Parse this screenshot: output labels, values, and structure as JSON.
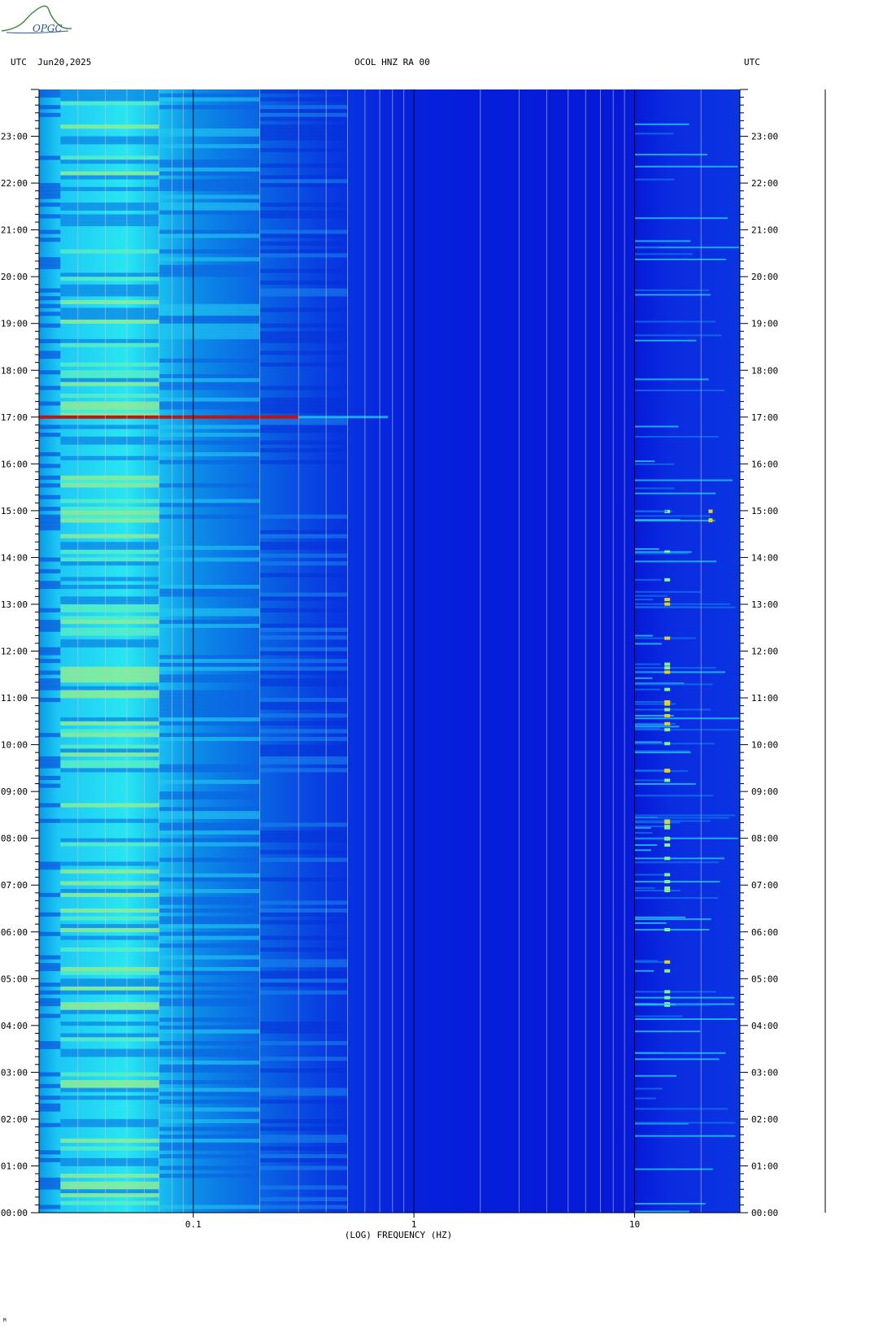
{
  "header": {
    "left": "UTC  Jun20,2025",
    "center": "OCOL HNZ RA 00",
    "right": "UTC",
    "logo_text": "OPGC",
    "credit": "M"
  },
  "colors": {
    "low": "#0018d8",
    "mid": "#0aa0f0",
    "cyan": "#20e8f8",
    "high": "#c8f040",
    "peak": "#c81010"
  },
  "chart_data": {
    "type": "heatmap",
    "title": "OCOL HNZ RA 00",
    "xlabel": "(LOG) FREQUENCY (HZ)",
    "ylabel": "UTC",
    "x_scale": "log",
    "xlim": [
      0.02,
      30
    ],
    "ylim": [
      0,
      24
    ],
    "x_ticks": [
      {
        "value": 0.1,
        "label": "0.1"
      },
      {
        "value": 1,
        "label": "1"
      },
      {
        "value": 10,
        "label": "10"
      }
    ],
    "y_ticks": [
      {
        "value": 0,
        "label": "00:00"
      },
      {
        "value": 1,
        "label": "01:00"
      },
      {
        "value": 2,
        "label": "02:00"
      },
      {
        "value": 3,
        "label": "03:00"
      },
      {
        "value": 4,
        "label": "04:00"
      },
      {
        "value": 5,
        "label": "05:00"
      },
      {
        "value": 6,
        "label": "06:00"
      },
      {
        "value": 7,
        "label": "07:00"
      },
      {
        "value": 8,
        "label": "08:00"
      },
      {
        "value": 9,
        "label": "09:00"
      },
      {
        "value": 10,
        "label": "10:00"
      },
      {
        "value": 11,
        "label": "11:00"
      },
      {
        "value": 12,
        "label": "12:00"
      },
      {
        "value": 13,
        "label": "13:00"
      },
      {
        "value": 14,
        "label": "14:00"
      },
      {
        "value": 15,
        "label": "15:00"
      },
      {
        "value": 16,
        "label": "16:00"
      },
      {
        "value": 17,
        "label": "17:00"
      },
      {
        "value": 18,
        "label": "18:00"
      },
      {
        "value": 19,
        "label": "19:00"
      },
      {
        "value": 20,
        "label": "20:00"
      },
      {
        "value": 21,
        "label": "21:00"
      },
      {
        "value": 22,
        "label": "22:00"
      },
      {
        "value": 23,
        "label": "23:00"
      }
    ],
    "events": [
      {
        "time": 17.0,
        "f_min": 0.02,
        "f_max": 0.3,
        "level": "peak"
      }
    ],
    "bands": [
      {
        "f_min": 0.02,
        "f_max": 0.025,
        "level": "mid"
      },
      {
        "f_min": 0.025,
        "f_max": 0.07,
        "level": "cyan"
      },
      {
        "f_min": 0.07,
        "f_max": 0.2,
        "level": "mid"
      },
      {
        "f_min": 0.2,
        "f_max": 0.5,
        "level": "mid-low"
      },
      {
        "f_min": 0.5,
        "f_max": 10,
        "level": "low"
      },
      {
        "f_min": 10,
        "f_max": 30,
        "level": "low-with-bursts"
      }
    ],
    "grid": true
  }
}
